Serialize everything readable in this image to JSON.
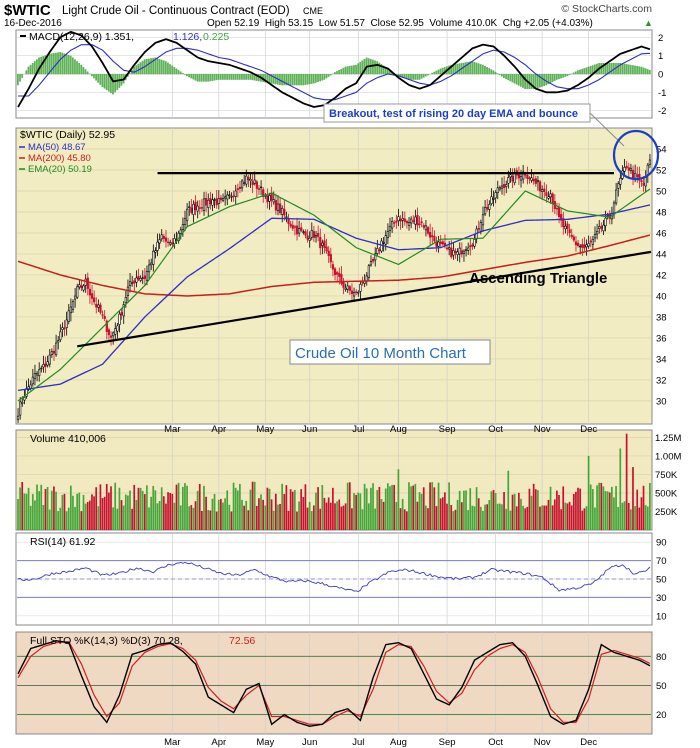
{
  "header": {
    "symbol": "$WTIC",
    "description": "Light Crude Oil - Continuous Contract (EOD)",
    "exchange": "CME",
    "copyright": "© StockCharts.com",
    "date": "16-Dec-2016",
    "quote": "Open 52.19  High 53.15  Low 51.57  Close 52.95  Volume 410.0K  Chg +2.05 (+4.03%)",
    "quote_arrow": "▲"
  },
  "colors": {
    "price_bg": "#f2ecc2",
    "macd_bg": "#ffffff",
    "volume_bg": "#f1e9c0",
    "rsi_bg": "#ffffff",
    "sto_bg": "#f0d9c3",
    "ma50": "#2e2ec8",
    "ma200": "#c81e1e",
    "ema20": "#228b22",
    "up_bar": "#43a53a",
    "down_bar": "#c8102e",
    "annotation": "#1a3fc8"
  },
  "chart_data": [
    {
      "type": "line",
      "panel": "MACD",
      "title": "MACD(12,26,9) 1.351, 1.126, 0.225",
      "title_parts": [
        "MACD(12,26,9) 1.351,",
        "1.126,",
        "0.225"
      ],
      "yticks": [
        "2",
        "1",
        "0",
        "-1",
        "-2"
      ],
      "ylim": [
        -2.4,
        2.4
      ],
      "series": [
        {
          "name": "MACD",
          "x": [
            0,
            5,
            10,
            15,
            20,
            25,
            30,
            35,
            40,
            45,
            50,
            55,
            60,
            65,
            70,
            75,
            80,
            85,
            90,
            95,
            100,
            105,
            110,
            115,
            120,
            125,
            130,
            135,
            140,
            145,
            150,
            155,
            160,
            165,
            170,
            175,
            180,
            185,
            190,
            195,
            200,
            205,
            210,
            215,
            220,
            225,
            230,
            235,
            240,
            245,
            250,
            255,
            260,
            265,
            270,
            275,
            280,
            285,
            290,
            295,
            299
          ],
          "values": [
            -1.8,
            -0.8,
            0.3,
            1.2,
            2.0,
            2.3,
            2.1,
            1.5,
            0.6,
            -0.4,
            -0.3,
            0.5,
            1.2,
            1.7,
            1.9,
            1.7,
            1.3,
            0.9,
            0.7,
            0.6,
            0.5,
            0.3,
            0.1,
            -0.2,
            -0.6,
            -1.0,
            -1.3,
            -1.6,
            -1.8,
            -1.7,
            -1.3,
            -0.8,
            -0.5,
            0.4,
            0.5,
            0.3,
            -0.2,
            -0.6,
            -0.8,
            -0.6,
            -0.1,
            0.4,
            0.9,
            1.4,
            1.6,
            1.5,
            1.0,
            0.4,
            -0.3,
            -0.8,
            -1.0,
            -1.0,
            -0.9,
            -0.6,
            -0.2,
            0.3,
            0.7,
            1.1,
            1.3,
            1.5,
            1.35
          ]
        },
        {
          "name": "Signal",
          "x": [
            0,
            5,
            10,
            15,
            20,
            25,
            30,
            35,
            40,
            45,
            50,
            55,
            60,
            65,
            70,
            75,
            80,
            85,
            90,
            95,
            100,
            105,
            110,
            115,
            120,
            125,
            130,
            135,
            140,
            145,
            150,
            155,
            160,
            165,
            170,
            175,
            180,
            185,
            190,
            195,
            200,
            205,
            210,
            215,
            220,
            225,
            230,
            235,
            240,
            245,
            250,
            255,
            260,
            265,
            270,
            275,
            280,
            285,
            290,
            295,
            299
          ],
          "values": [
            -1.2,
            -1.2,
            -0.6,
            0.1,
            0.8,
            1.3,
            1.6,
            1.6,
            1.3,
            0.7,
            0.2,
            0.1,
            0.4,
            0.8,
            1.2,
            1.4,
            1.4,
            1.3,
            1.1,
            0.9,
            0.8,
            0.6,
            0.4,
            0.2,
            -0.1,
            -0.4,
            -0.7,
            -1.0,
            -1.3,
            -1.4,
            -1.4,
            -1.2,
            -1.0,
            -0.5,
            -0.2,
            0.0,
            -0.1,
            -0.3,
            -0.5,
            -0.6,
            -0.4,
            -0.1,
            0.3,
            0.7,
            1.1,
            1.3,
            1.2,
            0.9,
            0.5,
            0.0,
            -0.4,
            -0.7,
            -0.8,
            -0.8,
            -0.6,
            -0.3,
            0.1,
            0.5,
            0.8,
            1.1,
            1.13
          ]
        }
      ]
    },
    {
      "type": "candlestick",
      "panel": "Price",
      "title": "$WTIC (Daily) 52.95",
      "legend": [
        "MA(50) 48.67",
        "MA(200) 45.80",
        "EMA(20) 50.19"
      ],
      "ylim": [
        27.8,
        56
      ],
      "yticks": [
        "54",
        "52",
        "50",
        "48",
        "46",
        "44",
        "42",
        "40",
        "38",
        "36",
        "34",
        "32",
        "30"
      ],
      "xticks": [
        "Mar",
        "Apr",
        "May",
        "Jun",
        "Jul",
        "Aug",
        "Sep",
        "Oct",
        "Nov",
        "Dec"
      ],
      "annotation": "Breakout, test of rising 20 day EMA and bounce",
      "label_triangle": "Ascending Triangle",
      "label_box": "Crude Oil 10 Month Chart",
      "close_knots": {
        "x": [
          0,
          3,
          8,
          12,
          16,
          20,
          24,
          28,
          32,
          36,
          40,
          44,
          48,
          52,
          56,
          60,
          64,
          68,
          72,
          76,
          80,
          84,
          88,
          92,
          96,
          100,
          104,
          108,
          112,
          116,
          120,
          124,
          128,
          132,
          136,
          140,
          144,
          148,
          152,
          156,
          160,
          164,
          168,
          172,
          176,
          180,
          184,
          188,
          192,
          196,
          200,
          204,
          208,
          212,
          216,
          220,
          224,
          228,
          232,
          236,
          240,
          244,
          248,
          252,
          256,
          260,
          264,
          268,
          272,
          276,
          280,
          284,
          288,
          292,
          296,
          299
        ],
        "values": [
          29.0,
          30.6,
          32.4,
          33.2,
          34.5,
          36.2,
          38.2,
          40.5,
          41.3,
          39.5,
          38.0,
          36.0,
          37.9,
          40.7,
          41.8,
          41.8,
          43.9,
          45.7,
          44.7,
          45.9,
          48.0,
          48.6,
          48.8,
          49.2,
          48.8,
          49.4,
          50.5,
          51.2,
          50.7,
          49.8,
          49.0,
          48.2,
          47.1,
          46.3,
          45.8,
          45.9,
          44.7,
          43.0,
          41.5,
          40.6,
          40.1,
          41.7,
          43.2,
          45.1,
          46.4,
          47.6,
          46.9,
          47.3,
          46.8,
          45.5,
          44.7,
          44.2,
          44.0,
          44.8,
          45.3,
          48.0,
          49.0,
          50.4,
          51.0,
          51.5,
          51.8,
          50.9,
          50.2,
          49.8,
          47.3,
          46.0,
          45.0,
          44.5,
          45.2,
          46.5,
          47.5,
          50.5,
          52.5,
          51.3,
          50.5,
          52.95
        ]
      },
      "ma50_knots": {
        "x": [
          0,
          20,
          40,
          60,
          80,
          100,
          120,
          140,
          160,
          180,
          200,
          220,
          240,
          260,
          280,
          299
        ],
        "values": [
          31.0,
          31.6,
          33.5,
          38.0,
          41.8,
          44.5,
          47.4,
          47.3,
          45.5,
          44.4,
          44.6,
          46.2,
          47.2,
          47.3,
          47.8,
          48.67
        ]
      },
      "ma200_knots": {
        "x": [
          0,
          20,
          40,
          60,
          80,
          100,
          120,
          140,
          160,
          180,
          200,
          220,
          240,
          260,
          280,
          299
        ],
        "values": [
          43.3,
          42.0,
          41.0,
          40.2,
          40.0,
          40.2,
          40.9,
          41.3,
          41.4,
          41.5,
          41.8,
          42.5,
          43.2,
          43.8,
          44.8,
          45.8
        ]
      },
      "ema20_knots": {
        "x": [
          0,
          20,
          40,
          60,
          80,
          100,
          120,
          140,
          160,
          180,
          200,
          220,
          240,
          260,
          280,
          299
        ],
        "values": [
          30.0,
          33.0,
          37.0,
          41.0,
          46.6,
          48.5,
          49.8,
          47.7,
          44.6,
          43.0,
          45.4,
          45.5,
          50.0,
          48.1,
          47.5,
          50.19
        ]
      },
      "resistance_line": {
        "x": [
          66,
          282
        ],
        "values": [
          51.7,
          51.7
        ]
      },
      "triangle_support": {
        "x": [
          28,
          299
        ],
        "values": [
          35.2,
          44.2
        ]
      }
    },
    {
      "type": "bar",
      "panel": "Volume",
      "title": "Volume 410,006",
      "yticks": [
        "1.25M",
        "1.00M",
        "750K",
        "500K",
        "250K"
      ],
      "ylim": [
        0,
        1350000
      ],
      "base_volume": 450000,
      "spikes": [
        {
          "x": 270,
          "value": 1000000
        },
        {
          "x": 285,
          "value": 1100000
        },
        {
          "x": 288,
          "value": 1300000
        },
        {
          "x": 291,
          "value": 850000
        },
        {
          "x": 232,
          "value": 800000
        },
        {
          "x": 180,
          "value": 820000
        }
      ]
    },
    {
      "type": "line",
      "panel": "RSI",
      "title": "RSI(14) 61.92",
      "yticks": [
        "90",
        "70",
        "50",
        "30",
        "10"
      ],
      "ylim": [
        0,
        100
      ],
      "series": [
        {
          "name": "RSI(14)",
          "x": [
            0,
            8,
            16,
            24,
            32,
            40,
            48,
            56,
            64,
            72,
            80,
            88,
            96,
            104,
            112,
            120,
            128,
            136,
            144,
            152,
            160,
            168,
            176,
            184,
            192,
            200,
            208,
            216,
            224,
            232,
            240,
            248,
            256,
            264,
            272,
            280,
            286,
            292,
            296,
            299
          ],
          "values": [
            49,
            50,
            56,
            58,
            62,
            54,
            56,
            62,
            58,
            66,
            68,
            62,
            56,
            54,
            60,
            52,
            47,
            48,
            45,
            40,
            36,
            48,
            58,
            60,
            56,
            52,
            50,
            52,
            60,
            58,
            56,
            52,
            38,
            40,
            45,
            62,
            66,
            55,
            58,
            61.92
          ]
        }
      ]
    },
    {
      "type": "line",
      "panel": "Full STO",
      "title": "Full STO %K(14,3) %D(3) 70.28, 72.56",
      "title_parts": [
        "Full STO %K(14,3) %D(3) 70.28,",
        "72.56"
      ],
      "yticks": [
        "80",
        "50",
        "20"
      ],
      "ylim": [
        0,
        105
      ],
      "series": [
        {
          "name": "%K",
          "x": [
            0,
            6,
            12,
            18,
            24,
            30,
            36,
            42,
            48,
            54,
            60,
            66,
            72,
            78,
            84,
            90,
            96,
            102,
            108,
            114,
            120,
            126,
            132,
            138,
            144,
            150,
            156,
            162,
            168,
            174,
            180,
            186,
            192,
            198,
            204,
            210,
            216,
            222,
            228,
            234,
            240,
            246,
            252,
            258,
            264,
            270,
            276,
            282,
            288,
            294,
            299
          ],
          "values": [
            62,
            88,
            92,
            96,
            94,
            60,
            28,
            12,
            40,
            82,
            86,
            92,
            94,
            85,
            72,
            38,
            30,
            22,
            46,
            52,
            10,
            20,
            12,
            8,
            10,
            22,
            26,
            14,
            58,
            92,
            94,
            88,
            62,
            36,
            30,
            48,
            76,
            84,
            92,
            94,
            80,
            50,
            18,
            10,
            14,
            46,
            92,
            84,
            80,
            76,
            70.28
          ]
        },
        {
          "name": "%D",
          "x": [
            0,
            6,
            12,
            18,
            24,
            30,
            36,
            42,
            48,
            54,
            60,
            66,
            72,
            78,
            84,
            90,
            96,
            102,
            108,
            114,
            120,
            126,
            132,
            138,
            144,
            150,
            156,
            162,
            168,
            174,
            180,
            186,
            192,
            198,
            204,
            210,
            216,
            222,
            228,
            234,
            240,
            246,
            252,
            258,
            264,
            270,
            276,
            282,
            288,
            294,
            299
          ],
          "values": [
            58,
            80,
            90,
            94,
            95,
            72,
            40,
            18,
            32,
            70,
            84,
            90,
            93,
            88,
            76,
            48,
            34,
            26,
            40,
            50,
            18,
            18,
            14,
            10,
            10,
            18,
            24,
            18,
            46,
            84,
            92,
            90,
            70,
            44,
            32,
            42,
            66,
            80,
            88,
            92,
            84,
            58,
            26,
            12,
            12,
            36,
            82,
            86,
            82,
            78,
            72.56
          ]
        }
      ]
    }
  ]
}
